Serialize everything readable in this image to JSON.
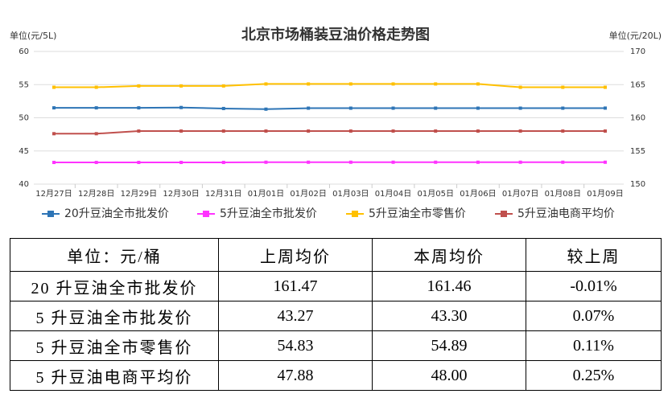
{
  "chart_data": {
    "type": "line",
    "title": "北京市场桶装豆油价格走势图",
    "y_label": "单位(元/5L)",
    "y2_label": "单位(元/20L)",
    "categories": [
      "12月27日",
      "12月28日",
      "12月29日",
      "12月30日",
      "12月31日",
      "01月01日",
      "01月02日",
      "01月03日",
      "01月04日",
      "01月05日",
      "01月06日",
      "01月07日",
      "01月08日",
      "01月09日"
    ],
    "series": [
      {
        "name": "20升豆油全市批发价",
        "color": "#2e75b6",
        "axis": "y2",
        "values": [
          161.5,
          161.5,
          161.5,
          161.55,
          161.4,
          161.3,
          161.45,
          161.45,
          161.45,
          161.45,
          161.45,
          161.45,
          161.45,
          161.46
        ]
      },
      {
        "name": "5升豆油全市批发价",
        "color": "#ff33ff",
        "values": [
          43.27,
          43.27,
          43.27,
          43.27,
          43.27,
          43.3,
          43.3,
          43.3,
          43.3,
          43.3,
          43.3,
          43.3,
          43.3,
          43.3
        ]
      },
      {
        "name": "5升豆油全市零售价",
        "color": "#ffc000",
        "values": [
          54.6,
          54.6,
          54.8,
          54.8,
          54.8,
          55.1,
          55.1,
          55.1,
          55.1,
          55.1,
          55.1,
          54.6,
          54.6,
          54.6
        ]
      },
      {
        "name": "5升豆油电商平均价",
        "color": "#c0504d",
        "values": [
          47.6,
          47.6,
          48,
          48,
          48,
          48,
          48,
          48,
          48,
          48,
          48,
          48,
          48,
          48
        ]
      }
    ],
    "ylim": [
      40,
      60
    ],
    "yticks": [
      40,
      45,
      50,
      55,
      60
    ],
    "y2lim": [
      150,
      170
    ],
    "y2ticks": [
      150,
      155,
      160,
      165,
      170
    ],
    "grid": true,
    "legend": "bottom"
  },
  "table": {
    "header": [
      "单位：元/桶",
      "上周均价",
      "本周均价",
      "较上周"
    ],
    "rows": [
      [
        "20 升豆油全市批发价",
        "161.47",
        "161.46",
        "-0.01%"
      ],
      [
        "5 升豆油全市批发价",
        "43.27",
        "43.30",
        "0.07%"
      ],
      [
        "5 升豆油全市零售价",
        "54.83",
        "54.89",
        "0.11%"
      ],
      [
        "5 升豆油电商平均价",
        "47.88",
        "48.00",
        "0.25%"
      ]
    ]
  }
}
